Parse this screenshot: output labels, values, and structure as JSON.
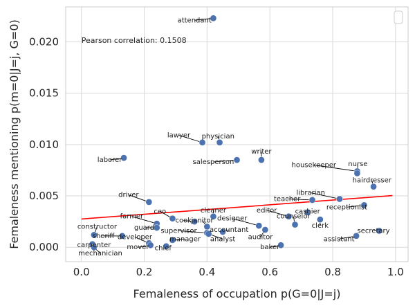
{
  "chart_data": {
    "type": "scatter",
    "xlabel": "Femaleness of occupation p(G=0|J=j)",
    "ylabel": "Femaleness mentioning p(m=0|J=j, G=0)",
    "xlim": [
      -0.05,
      1.04
    ],
    "ylim": [
      -0.0014,
      0.0234
    ],
    "xticks": [
      0.0,
      0.2,
      0.4,
      0.6,
      0.8,
      1.0
    ],
    "xtick_labels": [
      "0.0",
      "0.2",
      "0.4",
      "0.6",
      "0.8",
      "1.0"
    ],
    "yticks": [
      0.0,
      0.005,
      0.01,
      0.015,
      0.02
    ],
    "ytick_labels": [
      "0.000",
      "0.005",
      "0.010",
      "0.015",
      "0.020"
    ],
    "grid": true,
    "annotation": "Pearson correlation: 0.1508",
    "marker_color": "#4c72b0",
    "trend_line": {
      "color": "#ff0000",
      "x": [
        0.0,
        0.99
      ],
      "y": [
        0.00275,
        0.00503
      ]
    },
    "points": [
      {
        "label": "attendant",
        "x": 0.42,
        "y": 0.0223,
        "lx": 0.36,
        "ly": 0.0219
      },
      {
        "label": "laborer",
        "x": 0.135,
        "y": 0.0087,
        "lx": 0.09,
        "ly": 0.0083
      },
      {
        "label": "lawyer",
        "x": 0.385,
        "y": 0.0102,
        "lx": 0.31,
        "ly": 0.0107
      },
      {
        "label": "physician",
        "x": 0.44,
        "y": 0.0102,
        "lx": 0.435,
        "ly": 0.0106
      },
      {
        "label": "salesperson",
        "x": 0.495,
        "y": 0.0085,
        "lx": 0.42,
        "ly": 0.0081
      },
      {
        "label": "writer",
        "x": 0.573,
        "y": 0.0085,
        "lx": 0.573,
        "ly": 0.0091
      },
      {
        "label": "housekeeper",
        "x": 0.878,
        "y": 0.0074,
        "lx": 0.74,
        "ly": 0.0078
      },
      {
        "label": "nurse",
        "x": 0.878,
        "y": 0.0072,
        "lx": 0.88,
        "ly": 0.0079
      },
      {
        "label": "hairdresser",
        "x": 0.93,
        "y": 0.0059,
        "lx": 0.925,
        "ly": 0.0063
      },
      {
        "label": "librarian",
        "x": 0.822,
        "y": 0.0047,
        "lx": 0.73,
        "ly": 0.0051
      },
      {
        "label": "teacher",
        "x": 0.735,
        "y": 0.0046,
        "lx": 0.655,
        "ly": 0.0045
      },
      {
        "label": "receptionist",
        "x": 0.9,
        "y": 0.0041,
        "lx": 0.845,
        "ly": 0.0037
      },
      {
        "label": "driver",
        "x": 0.215,
        "y": 0.0044,
        "lx": 0.15,
        "ly": 0.0049
      },
      {
        "label": "cleaner",
        "x": 0.42,
        "y": 0.003,
        "lx": 0.42,
        "ly": 0.0034
      },
      {
        "label": "editor",
        "x": 0.66,
        "y": 0.003,
        "lx": 0.59,
        "ly": 0.0034
      },
      {
        "label": "cashier",
        "x": 0.72,
        "y": 0.0034,
        "lx": 0.72,
        "ly": 0.0033
      },
      {
        "label": "counselor",
        "x": 0.68,
        "y": 0.0022,
        "lx": 0.675,
        "ly": 0.0028
      },
      {
        "label": "clerk",
        "x": 0.76,
        "y": 0.0027,
        "lx": 0.76,
        "ly": 0.0019
      },
      {
        "label": "ceo",
        "x": 0.29,
        "y": 0.0028,
        "lx": 0.25,
        "ly": 0.0033
      },
      {
        "label": "farmer",
        "x": 0.24,
        "y": 0.0023,
        "lx": 0.16,
        "ly": 0.0028
      },
      {
        "label": "cook",
        "x": 0.36,
        "y": 0.0025,
        "lx": 0.325,
        "ly": 0.0024
      },
      {
        "label": "janitor",
        "x": 0.4,
        "y": 0.002,
        "lx": 0.385,
        "ly": 0.0024
      },
      {
        "label": "designer",
        "x": 0.565,
        "y": 0.0021,
        "lx": 0.48,
        "ly": 0.0026
      },
      {
        "label": "constructor",
        "x": 0.04,
        "y": 0.0012,
        "lx": 0.05,
        "ly": 0.0018
      },
      {
        "label": "guard",
        "x": 0.24,
        "y": 0.0019,
        "lx": 0.2,
        "ly": 0.0017
      },
      {
        "label": "supervisor",
        "x": 0.4,
        "y": 0.0014,
        "lx": 0.31,
        "ly": 0.0014
      },
      {
        "label": "accountant",
        "x": 0.45,
        "y": 0.0015,
        "lx": 0.47,
        "ly": 0.0015
      },
      {
        "label": "auditor",
        "x": 0.585,
        "y": 0.0017,
        "lx": 0.57,
        "ly": 0.0008
      },
      {
        "label": "secretary",
        "x": 0.948,
        "y": 0.0016,
        "lx": 0.93,
        "ly": 0.0014
      },
      {
        "label": "assistant",
        "x": 0.875,
        "y": 0.0011,
        "lx": 0.82,
        "ly": 0.0006
      },
      {
        "label": "sheriff",
        "x": 0.13,
        "y": 0.0011,
        "lx": 0.07,
        "ly": 0.0009
      },
      {
        "label": "developer",
        "x": 0.215,
        "y": 0.0004,
        "lx": 0.17,
        "ly": 0.0008
      },
      {
        "label": "manager",
        "x": 0.29,
        "y": 0.0007,
        "lx": 0.33,
        "ly": 0.0006
      },
      {
        "label": "analyst",
        "x": 0.405,
        "y": 0.0013,
        "lx": 0.45,
        "ly": 0.0006
      },
      {
        "label": "mover",
        "x": 0.22,
        "y": 0.0002,
        "lx": 0.18,
        "ly": -0.0002
      },
      {
        "label": "chief",
        "x": 0.27,
        "y": 0.0001,
        "lx": 0.26,
        "ly": -0.0003
      },
      {
        "label": "baker",
        "x": 0.635,
        "y": 0.0002,
        "lx": 0.6,
        "ly": -0.0002
      },
      {
        "label": "carpenter",
        "x": 0.035,
        "y": 0.0003,
        "lx": 0.04,
        "ly": 0.0
      },
      {
        "label": "mechanician",
        "x": 0.04,
        "y": 0.0,
        "lx": 0.06,
        "ly": -0.0008
      }
    ]
  }
}
